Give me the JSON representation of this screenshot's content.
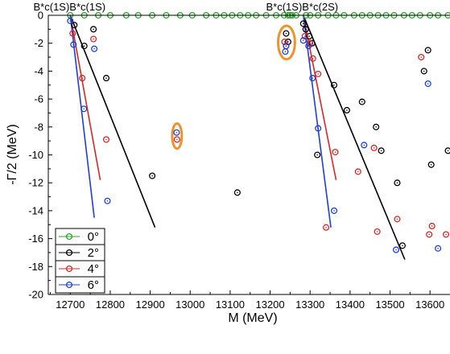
{
  "chart_data": {
    "type": "scatter",
    "title": "",
    "xlabel": "M (MeV)",
    "ylabel": "-Γ/2 (MeV)",
    "xlim": [
      12645,
      13650
    ],
    "ylim": [
      -20,
      0
    ],
    "xticks": [
      12700,
      12800,
      12900,
      13000,
      13100,
      13200,
      13300,
      13400,
      13500,
      13600
    ],
    "yticks": [
      0,
      -2,
      -4,
      -6,
      -8,
      -10,
      -12,
      -14,
      -16,
      -18,
      -20
    ],
    "threshold_labels": [
      {
        "text": "B*c(1S)B*c(1S)",
        "x": 12698
      },
      {
        "text": "B*c(1S)B*c(2S)",
        "x": 13280
      }
    ],
    "legend_position": "bottom-left",
    "series": [
      {
        "name": "0°",
        "color": "#2ca02c",
        "points": [
          [
            12700,
            0
          ],
          [
            12735,
            0
          ],
          [
            12770,
            0
          ],
          [
            12800,
            0
          ],
          [
            12840,
            0
          ],
          [
            12870,
            0
          ],
          [
            12905,
            0
          ],
          [
            12940,
            0
          ],
          [
            12975,
            0
          ],
          [
            13005,
            0
          ],
          [
            13040,
            0
          ],
          [
            13065,
            0
          ],
          [
            13085,
            0
          ],
          [
            13105,
            0
          ],
          [
            13125,
            0
          ],
          [
            13145,
            0
          ],
          [
            13165,
            0
          ],
          [
            13190,
            0
          ],
          [
            13215,
            0
          ],
          [
            13235,
            0
          ],
          [
            13245,
            0
          ],
          [
            13250,
            0
          ],
          [
            13255,
            0
          ],
          [
            13265,
            0
          ],
          [
            13290,
            0
          ],
          [
            13300,
            0
          ],
          [
            13320,
            0
          ],
          [
            13345,
            0
          ],
          [
            13365,
            0
          ],
          [
            13385,
            0
          ],
          [
            13410,
            0
          ],
          [
            13430,
            0
          ],
          [
            13450,
            0
          ],
          [
            13470,
            0
          ],
          [
            13490,
            0
          ],
          [
            13510,
            0
          ],
          [
            13535,
            0
          ],
          [
            13555,
            0
          ],
          [
            13575,
            0
          ],
          [
            13600,
            0
          ],
          [
            13620,
            0
          ],
          [
            13645,
            0
          ]
        ],
        "line": []
      },
      {
        "name": "2°",
        "color": "#000000",
        "points": [
          [
            12710,
            -0.7
          ],
          [
            12735,
            -2.2
          ],
          [
            12758,
            -1.0
          ],
          [
            12790,
            -4.5
          ],
          [
            12905,
            -11.5
          ],
          [
            13118,
            -12.7
          ],
          [
            13240,
            -1.3
          ],
          [
            13245,
            -1.9
          ],
          [
            13283,
            -0.6
          ],
          [
            13289,
            -1.0
          ],
          [
            13298,
            -1.5
          ],
          [
            13305,
            -2.0
          ],
          [
            13318,
            -10.0
          ],
          [
            13360,
            -5.0
          ],
          [
            13392,
            -6.8
          ],
          [
            13430,
            -6.2
          ],
          [
            13465,
            -8.0
          ],
          [
            13478,
            -9.7
          ],
          [
            13518,
            -12.0
          ],
          [
            13531,
            -16.5
          ],
          [
            13585,
            -4.0
          ],
          [
            13595,
            -2.5
          ],
          [
            13603,
            -10.7
          ],
          [
            13645,
            -9.7
          ]
        ],
        "line": [
          [
            12700,
            0
          ],
          [
            12912,
            -15.2
          ]
        ]
      },
      {
        "name": "4°",
        "color": "#d62728",
        "points": [
          [
            12706,
            -1.3
          ],
          [
            12730,
            -4.5
          ],
          [
            12758,
            -1.7
          ],
          [
            12790,
            -8.9
          ],
          [
            12967,
            -8.9
          ],
          [
            13240,
            -2.2
          ],
          [
            13236,
            -1.9
          ],
          [
            13287,
            -1.5
          ],
          [
            13300,
            -2.0
          ],
          [
            13307,
            -3.1
          ],
          [
            13320,
            -4.2
          ],
          [
            13340,
            -15.2
          ],
          [
            13363,
            -9.8
          ],
          [
            13420,
            -11.2
          ],
          [
            13460,
            -9.5
          ],
          [
            13468,
            -15.5
          ],
          [
            13518,
            -14.6
          ],
          [
            13578,
            -3.0
          ],
          [
            13598,
            -15.7
          ],
          [
            13605,
            -15.1
          ],
          [
            13640,
            -15.7
          ]
        ],
        "line": [
          [
            12700,
            0
          ],
          [
            12775,
            -11.8
          ]
        ]
      },
      {
        "name": "6°",
        "color": "#1f3fd1",
        "points": [
          [
            12700,
            -0.4
          ],
          [
            12708,
            -2.1
          ],
          [
            12734,
            -6.7
          ],
          [
            12760,
            -2.4
          ],
          [
            12793,
            -13.3
          ],
          [
            12966,
            -8.4
          ],
          [
            13238,
            -2.6
          ],
          [
            13240,
            -2.2
          ],
          [
            13283,
            -1.8
          ],
          [
            13296,
            -2.2
          ],
          [
            13306,
            -4.5
          ],
          [
            13320,
            -8.1
          ],
          [
            13360,
            -14.0
          ],
          [
            13435,
            -9.3
          ],
          [
            13515,
            -16.8
          ],
          [
            13595,
            -4.9
          ],
          [
            13620,
            -16.7
          ]
        ],
        "line": [
          [
            12700,
            0
          ],
          [
            12760,
            -14.5
          ]
        ]
      }
    ],
    "lines_second": [
      {
        "color": "#000000",
        "line": [
          [
            13283,
            0
          ],
          [
            13537,
            -17.5
          ]
        ]
      },
      {
        "color": "#d62728",
        "line": [
          [
            13283,
            0
          ],
          [
            13365,
            -11.8
          ]
        ]
      },
      {
        "color": "#1f3fd1",
        "line": [
          [
            13283,
            0
          ],
          [
            13352,
            -15.2
          ]
        ]
      }
    ],
    "highlight_ellipses": [
      {
        "cx": 12967,
        "cy": -8.65,
        "rx": 12,
        "ry": 0.9
      },
      {
        "cx": 13241,
        "cy": -1.95,
        "rx": 21,
        "ry": 1.2
      }
    ]
  }
}
